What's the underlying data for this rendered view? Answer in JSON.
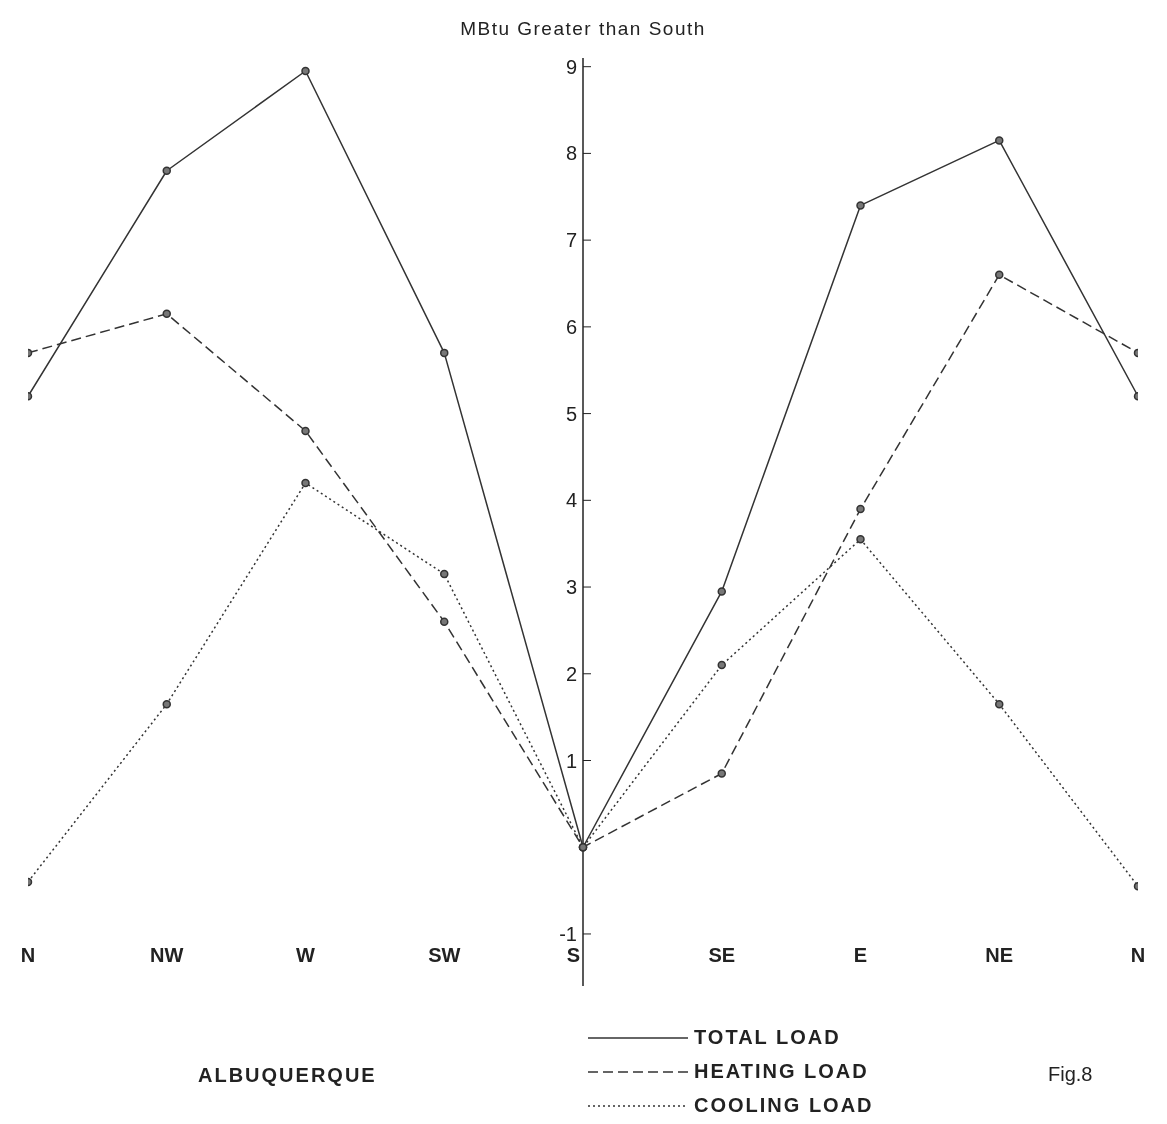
{
  "chart_data": {
    "type": "line",
    "ylabel": "MBtu Greater than South",
    "categories": [
      "N",
      "NW",
      "W",
      "SW",
      "S",
      "SE",
      "E",
      "NE",
      "N"
    ],
    "series": [
      {
        "name": "TOTAL LOAD",
        "color": "#333333",
        "line_style": "solid",
        "values": [
          5.2,
          7.8,
          8.95,
          5.7,
          0,
          2.95,
          7.4,
          8.15,
          5.2
        ]
      },
      {
        "name": "HEATING LOAD",
        "color": "#333333",
        "line_style": "dashed",
        "values": [
          5.7,
          6.15,
          4.8,
          2.6,
          0,
          0.85,
          3.9,
          6.6,
          5.7
        ]
      },
      {
        "name": "COOLING LOAD",
        "color": "#333333",
        "line_style": "dotted",
        "values": [
          -0.4,
          1.65,
          4.2,
          3.15,
          0,
          2.1,
          3.55,
          1.65,
          -0.45
        ]
      }
    ],
    "ylim": [
      -1.6,
      9.1
    ],
    "yticks": [
      -1,
      1,
      2,
      3,
      4,
      5,
      6,
      7,
      8,
      9
    ],
    "marker": "circle",
    "legend": "bottom",
    "grid": false,
    "annotations": [
      "ALBUQUERQUE",
      "Fig.8"
    ]
  }
}
